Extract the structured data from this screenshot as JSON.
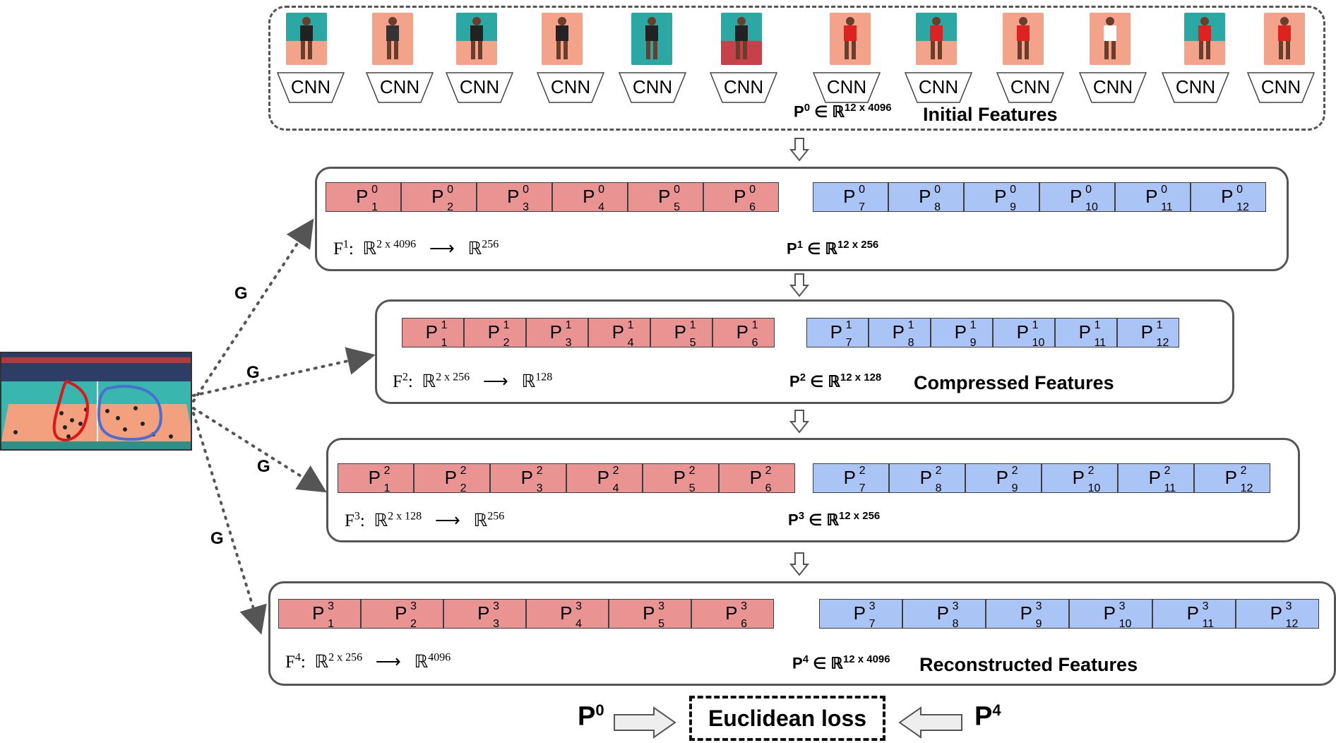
{
  "top": {
    "cnn_label": "CNN",
    "caption": "Initial Features",
    "pset": {
      "base": "P",
      "sup": "0",
      "rel": "∈ ℝ",
      "dim": "12 x 4096"
    }
  },
  "layers": [
    {
      "cell_sup": "0",
      "formula": {
        "f": "F",
        "fsup": "1",
        "in": "2 x 4096",
        "out": "256"
      },
      "pset": {
        "base": "P",
        "sup": "1",
        "rel": "∈ ℝ",
        "dim": "12 x 256"
      },
      "caption": ""
    },
    {
      "cell_sup": "1",
      "formula": {
        "f": "F",
        "fsup": "2",
        "in": "2 x 256",
        "out": "128"
      },
      "pset": {
        "base": "P",
        "sup": "2",
        "rel": "∈ ℝ",
        "dim": "12 x 128"
      },
      "caption": "Compressed Features"
    },
    {
      "cell_sup": "2",
      "formula": {
        "f": "F",
        "fsup": "3",
        "in": "2 x 128",
        "out": "256"
      },
      "pset": {
        "base": "P",
        "sup": "3",
        "rel": "∈ ℝ",
        "dim": "12 x 256"
      },
      "caption": ""
    },
    {
      "cell_sup": "3",
      "formula": {
        "f": "F",
        "fsup": "4",
        "in": "2 x 256",
        "out": "4096"
      },
      "pset": {
        "base": "P",
        "sup": "4",
        "rel": "∈ ℝ",
        "dim": "12 x 4096"
      },
      "caption": "Reconstructed Features"
    }
  ],
  "cells": [
    "1",
    "2",
    "3",
    "4",
    "5",
    "6",
    "7",
    "8",
    "9",
    "10",
    "11",
    "12"
  ],
  "g_label": "G",
  "bottom": {
    "left": "P",
    "left_sup": "0",
    "loss": "Euclidean loss",
    "right": "P",
    "right_sup": "4"
  },
  "colors": {
    "red_cell": "#e99493",
    "blue_cell": "#a9c4f5",
    "court_floor": "#f3a07e",
    "court_side": "#39b7ae"
  }
}
